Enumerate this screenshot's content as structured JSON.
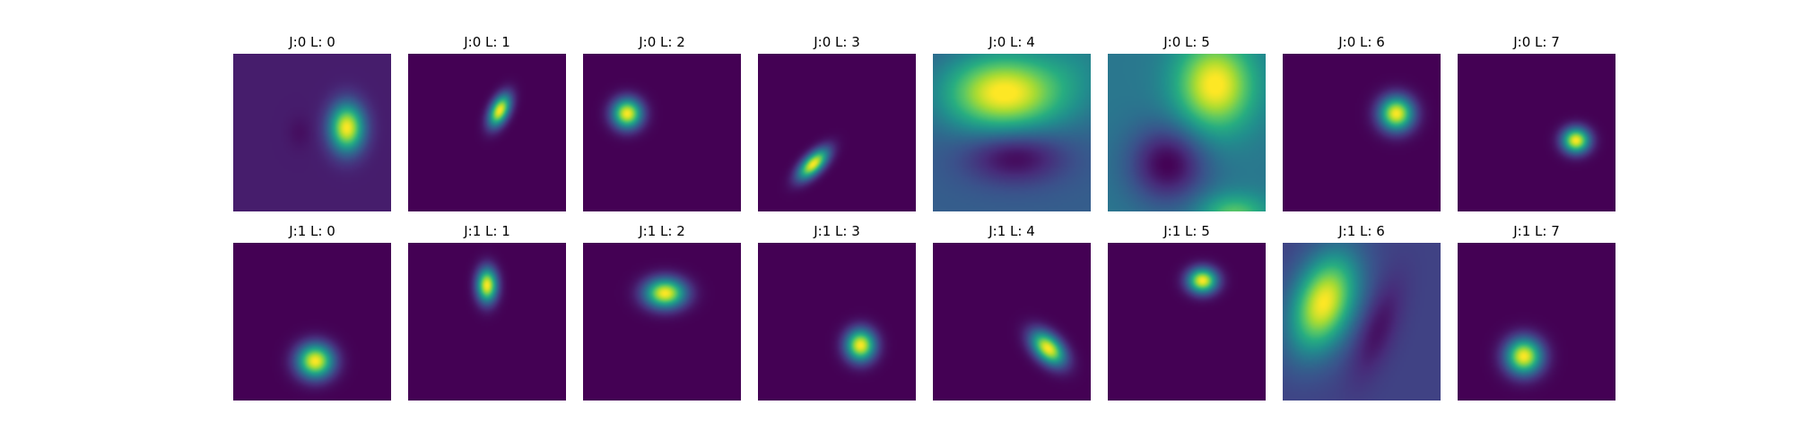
{
  "chart_data": {
    "type": "heatmap",
    "colormap": "viridis",
    "grid": {
      "rows": 2,
      "cols": 8
    },
    "axes_visible": false,
    "panels": [
      {
        "title": "J:0 L: 0",
        "bg": 0.08,
        "blobs": [
          {
            "cx": 0.72,
            "cy": 0.47,
            "sx": 0.075,
            "sy": 0.105,
            "rot": 0,
            "amp": 0.92
          },
          {
            "cx": 0.42,
            "cy": 0.5,
            "sx": 0.05,
            "sy": 0.07,
            "rot": 0,
            "amp": -0.04
          }
        ]
      },
      {
        "title": "J:0 L: 1",
        "bg": 0.0,
        "blobs": [
          {
            "cx": 0.58,
            "cy": 0.36,
            "sx": 0.04,
            "sy": 0.075,
            "rot": 25,
            "amp": 1.0
          }
        ]
      },
      {
        "title": "J:0 L: 2",
        "bg": 0.0,
        "blobs": [
          {
            "cx": 0.28,
            "cy": 0.38,
            "sx": 0.065,
            "sy": 0.065,
            "rot": 0,
            "amp": 1.0
          }
        ]
      },
      {
        "title": "J:0 L: 3",
        "bg": 0.0,
        "blobs": [
          {
            "cx": 0.35,
            "cy": 0.7,
            "sx": 0.04,
            "sy": 0.085,
            "rot": 45,
            "amp": 1.0
          }
        ]
      },
      {
        "title": "J:0 L: 4",
        "bg": 0.3,
        "blobs": [
          {
            "cx": 0.45,
            "cy": 0.25,
            "sx": 0.26,
            "sy": 0.17,
            "rot": 0,
            "amp": 0.72
          },
          {
            "cx": 0.52,
            "cy": 0.65,
            "sx": 0.22,
            "sy": 0.12,
            "rot": 0,
            "amp": -0.3
          },
          {
            "cx": 0.95,
            "cy": 0.05,
            "sx": 0.2,
            "sy": 0.25,
            "rot": 0,
            "amp": 0.12
          }
        ]
      },
      {
        "title": "J:0 L: 5",
        "bg": 0.4,
        "blobs": [
          {
            "cx": 0.68,
            "cy": 0.2,
            "sx": 0.17,
            "sy": 0.2,
            "rot": 0,
            "amp": 0.62
          },
          {
            "cx": 0.38,
            "cy": 0.7,
            "sx": 0.17,
            "sy": 0.17,
            "rot": 0,
            "amp": -0.4
          },
          {
            "cx": 0.8,
            "cy": 1.02,
            "sx": 0.15,
            "sy": 0.09,
            "rot": 0,
            "amp": 0.35
          }
        ]
      },
      {
        "title": "J:0 L: 6",
        "bg": 0.0,
        "blobs": [
          {
            "cx": 0.72,
            "cy": 0.38,
            "sx": 0.075,
            "sy": 0.075,
            "rot": 0,
            "amp": 1.0
          }
        ]
      },
      {
        "title": "J:0 L: 7",
        "bg": 0.0,
        "blobs": [
          {
            "cx": 0.75,
            "cy": 0.55,
            "sx": 0.06,
            "sy": 0.055,
            "rot": 0,
            "amp": 1.0
          }
        ]
      },
      {
        "title": "J:1 L: 0",
        "bg": 0.0,
        "blobs": [
          {
            "cx": 0.52,
            "cy": 0.75,
            "sx": 0.08,
            "sy": 0.075,
            "rot": 0,
            "amp": 1.0
          }
        ]
      },
      {
        "title": "J:1 L: 1",
        "bg": 0.0,
        "blobs": [
          {
            "cx": 0.5,
            "cy": 0.27,
            "sx": 0.045,
            "sy": 0.075,
            "rot": 0,
            "amp": 1.0
          }
        ]
      },
      {
        "title": "J:1 L: 2",
        "bg": 0.0,
        "blobs": [
          {
            "cx": 0.52,
            "cy": 0.32,
            "sx": 0.09,
            "sy": 0.065,
            "rot": 0,
            "amp": 1.0
          }
        ]
      },
      {
        "title": "J:1 L: 3",
        "bg": 0.0,
        "blobs": [
          {
            "cx": 0.65,
            "cy": 0.65,
            "sx": 0.065,
            "sy": 0.07,
            "rot": 0,
            "amp": 1.0
          }
        ]
      },
      {
        "title": "J:1 L: 4",
        "bg": 0.0,
        "blobs": [
          {
            "cx": 0.73,
            "cy": 0.67,
            "sx": 0.055,
            "sy": 0.09,
            "rot": -45,
            "amp": 1.0
          }
        ]
      },
      {
        "title": "J:1 L: 5",
        "bg": 0.0,
        "blobs": [
          {
            "cx": 0.6,
            "cy": 0.24,
            "sx": 0.065,
            "sy": 0.055,
            "rot": 0,
            "amp": 1.0
          }
        ]
      },
      {
        "title": "J:1 L: 6",
        "bg": 0.2,
        "blobs": [
          {
            "cx": 0.26,
            "cy": 0.38,
            "sx": 0.13,
            "sy": 0.22,
            "rot": 20,
            "amp": 0.8
          },
          {
            "cx": 0.6,
            "cy": 0.55,
            "sx": 0.08,
            "sy": 0.22,
            "rot": 20,
            "amp": -0.16
          }
        ]
      },
      {
        "title": "J:1 L: 7",
        "bg": 0.0,
        "blobs": [
          {
            "cx": 0.42,
            "cy": 0.72,
            "sx": 0.08,
            "sy": 0.08,
            "rot": 0,
            "amp": 1.0
          }
        ]
      }
    ]
  }
}
